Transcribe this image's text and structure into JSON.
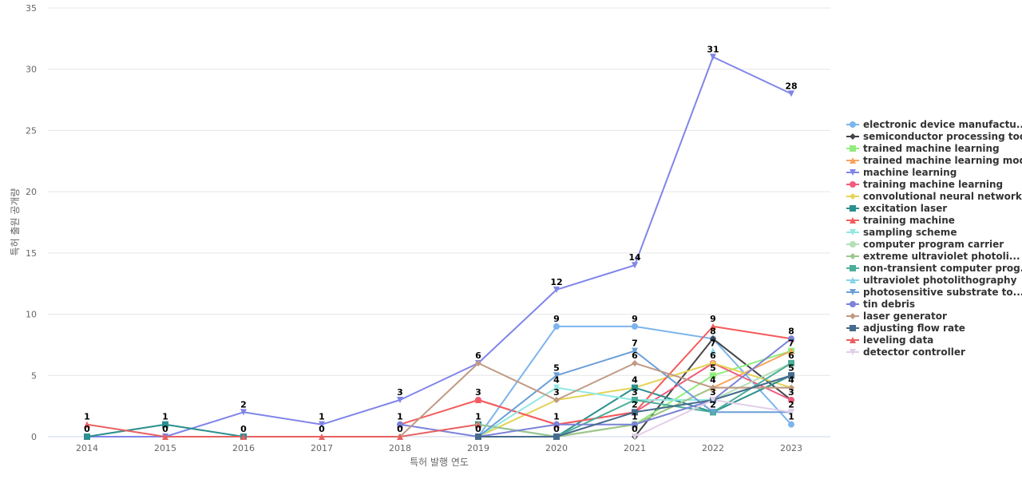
{
  "chart_data": {
    "type": "line",
    "xlabel": "특허 발행 연도",
    "ylabel": "특허 출원 공개량",
    "x": [
      "2014",
      "2015",
      "2016",
      "2017",
      "2018",
      "2019",
      "2020",
      "2021",
      "2022",
      "2023"
    ],
    "ylim": [
      0,
      35
    ],
    "yticks": [
      0,
      5,
      10,
      15,
      20,
      25,
      30,
      35
    ],
    "grid": true,
    "legend_position": "right",
    "series": [
      {
        "name": "electronic device manufactu...",
        "color": "#7cb5ec",
        "marker": "circle",
        "values": [
          null,
          null,
          null,
          null,
          null,
          0,
          9,
          9,
          8,
          1
        ]
      },
      {
        "name": "semiconductor processing tool",
        "color": "#434348",
        "marker": "diamond",
        "values": [
          null,
          null,
          null,
          null,
          null,
          null,
          null,
          0,
          8,
          3
        ]
      },
      {
        "name": "trained machine learning",
        "color": "#90ed7d",
        "marker": "square",
        "values": [
          null,
          null,
          null,
          null,
          null,
          null,
          0,
          1,
          5,
          7
        ]
      },
      {
        "name": "trained machine learning model",
        "color": "#f7a35c",
        "marker": "triangle",
        "values": [
          null,
          null,
          null,
          null,
          null,
          null,
          0,
          1,
          4,
          7
        ]
      },
      {
        "name": "machine learning",
        "color": "#8085e9",
        "marker": "triangle-down",
        "values": [
          0,
          0,
          2,
          1,
          3,
          6,
          12,
          14,
          31,
          28
        ]
      },
      {
        "name": "training machine learning",
        "color": "#f15c80",
        "marker": "circle",
        "values": [
          null,
          null,
          null,
          null,
          null,
          3,
          1,
          2,
          6,
          3
        ]
      },
      {
        "name": "convolutional neural network",
        "color": "#e4d354",
        "marker": "diamond",
        "values": [
          null,
          null,
          null,
          null,
          null,
          0,
          3,
          4,
          6,
          4
        ]
      },
      {
        "name": "excitation laser",
        "color": "#2b908f",
        "marker": "square",
        "values": [
          0,
          1,
          0,
          null,
          null,
          1,
          0,
          4,
          2,
          5
        ]
      },
      {
        "name": "training machine",
        "color": "#f45b5b",
        "marker": "triangle",
        "values": [
          null,
          null,
          null,
          null,
          1,
          3,
          1,
          2,
          9,
          8
        ]
      },
      {
        "name": "sampling scheme",
        "color": "#91e8e1",
        "marker": "triangle-down",
        "values": [
          null,
          null,
          null,
          null,
          null,
          0,
          4,
          3,
          3,
          5
        ]
      },
      {
        "name": "computer program carrier",
        "color": "#b2dfb4",
        "marker": "circle",
        "values": [
          null,
          null,
          null,
          null,
          null,
          null,
          0,
          1,
          3,
          6
        ]
      },
      {
        "name": "extreme ultraviolet photoli...",
        "color": "#9cc88e",
        "marker": "diamond",
        "values": [
          null,
          null,
          null,
          null,
          null,
          1,
          0,
          1,
          4,
          4
        ]
      },
      {
        "name": "non-transient computer prog...",
        "color": "#4dae9a",
        "marker": "square",
        "values": [
          null,
          null,
          null,
          null,
          null,
          null,
          0,
          3,
          2,
          6
        ]
      },
      {
        "name": "ultraviolet photolithography",
        "color": "#88d4e8",
        "marker": "triangle",
        "values": [
          null,
          null,
          null,
          null,
          null,
          null,
          null,
          null,
          7,
          null
        ]
      },
      {
        "name": "photosensitive substrate to...",
        "color": "#6a9fd8",
        "marker": "triangle-down",
        "values": [
          null,
          null,
          null,
          null,
          null,
          0,
          5,
          7,
          2,
          2
        ]
      },
      {
        "name": "tin debris",
        "color": "#7b82d8",
        "marker": "circle",
        "values": [
          null,
          null,
          null,
          null,
          1,
          0,
          1,
          1,
          3,
          8
        ]
      },
      {
        "name": "laser generator",
        "color": "#c09a84",
        "marker": "diamond",
        "values": [
          null,
          null,
          null,
          null,
          0,
          6,
          3,
          6,
          4,
          4
        ]
      },
      {
        "name": "adjusting flow rate",
        "color": "#466b8c",
        "marker": "square",
        "values": [
          null,
          null,
          null,
          null,
          null,
          0,
          0,
          2,
          3,
          5
        ]
      },
      {
        "name": "leveling data",
        "color": "#e86060",
        "marker": "triangle",
        "values": [
          1,
          0,
          0,
          0,
          0,
          1,
          null,
          null,
          null,
          null
        ]
      },
      {
        "name": "detector controller",
        "color": "#e1cfe8",
        "marker": "triangle-down",
        "values": [
          null,
          null,
          null,
          null,
          null,
          null,
          null,
          0,
          3,
          2
        ]
      }
    ],
    "data_labels": [
      {
        "x": "2014",
        "text": "1",
        "y": 1
      },
      {
        "x": "2014",
        "text": "0",
        "y": 0
      },
      {
        "x": "2015",
        "text": "1",
        "y": 1
      },
      {
        "x": "2015",
        "text": "0",
        "y": 0
      },
      {
        "x": "2016",
        "text": "2",
        "y": 2
      },
      {
        "x": "2016",
        "text": "0",
        "y": 0
      },
      {
        "x": "2017",
        "text": "1",
        "y": 1
      },
      {
        "x": "2017",
        "text": "0",
        "y": 0
      },
      {
        "x": "2018",
        "text": "3",
        "y": 3
      },
      {
        "x": "2018",
        "text": "1",
        "y": 1
      },
      {
        "x": "2018",
        "text": "0",
        "y": 0
      },
      {
        "x": "2019",
        "text": "6",
        "y": 6
      },
      {
        "x": "2019",
        "text": "3",
        "y": 3
      },
      {
        "x": "2019",
        "text": "1",
        "y": 1
      },
      {
        "x": "2019",
        "text": "0",
        "y": 0
      },
      {
        "x": "2020",
        "text": "12",
        "y": 12
      },
      {
        "x": "2020",
        "text": "9",
        "y": 9
      },
      {
        "x": "2020",
        "text": "5",
        "y": 5
      },
      {
        "x": "2020",
        "text": "4",
        "y": 4
      },
      {
        "x": "2020",
        "text": "3",
        "y": 3
      },
      {
        "x": "2020",
        "text": "1",
        "y": 1
      },
      {
        "x": "2020",
        "text": "0",
        "y": 0
      },
      {
        "x": "2021",
        "text": "14",
        "y": 14
      },
      {
        "x": "2021",
        "text": "9",
        "y": 9
      },
      {
        "x": "2021",
        "text": "7",
        "y": 7
      },
      {
        "x": "2021",
        "text": "6",
        "y": 6
      },
      {
        "x": "2021",
        "text": "4",
        "y": 4
      },
      {
        "x": "2021",
        "text": "3",
        "y": 3
      },
      {
        "x": "2021",
        "text": "2",
        "y": 2
      },
      {
        "x": "2021",
        "text": "1",
        "y": 1
      },
      {
        "x": "2021",
        "text": "0",
        "y": 0
      },
      {
        "x": "2022",
        "text": "31",
        "y": 31
      },
      {
        "x": "2022",
        "text": "9",
        "y": 9
      },
      {
        "x": "2022",
        "text": "8",
        "y": 8
      },
      {
        "x": "2022",
        "text": "7",
        "y": 7
      },
      {
        "x": "2022",
        "text": "6",
        "y": 6
      },
      {
        "x": "2022",
        "text": "5",
        "y": 5
      },
      {
        "x": "2022",
        "text": "4",
        "y": 4
      },
      {
        "x": "2022",
        "text": "3",
        "y": 3
      },
      {
        "x": "2022",
        "text": "2",
        "y": 2
      },
      {
        "x": "2023",
        "text": "28",
        "y": 28
      },
      {
        "x": "2023",
        "text": "8",
        "y": 8
      },
      {
        "x": "2023",
        "text": "7",
        "y": 7
      },
      {
        "x": "2023",
        "text": "6",
        "y": 6
      },
      {
        "x": "2023",
        "text": "5",
        "y": 5
      },
      {
        "x": "2023",
        "text": "4",
        "y": 4
      },
      {
        "x": "2023",
        "text": "3",
        "y": 3
      },
      {
        "x": "2023",
        "text": "2",
        "y": 2
      },
      {
        "x": "2023",
        "text": "1",
        "y": 1
      }
    ]
  }
}
